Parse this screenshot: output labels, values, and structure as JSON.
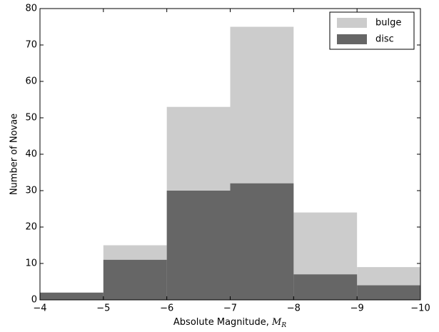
{
  "chart_data": {
    "type": "histogram",
    "xlabel": {
      "text": "Absolute Magnitude, ",
      "symbol": "M",
      "subscript": "R"
    },
    "ylabel": "Number of Novae",
    "bins": [
      -4,
      -5,
      -6,
      -7,
      -8,
      -9,
      -10
    ],
    "series": [
      {
        "name": "bulge",
        "color": "#cccccc",
        "values": [
          0,
          15,
          53,
          75,
          24,
          9
        ]
      },
      {
        "name": "disc",
        "color": "#666666",
        "values": [
          2,
          11,
          30,
          32,
          7,
          4
        ]
      }
    ],
    "xlim": [
      -4,
      -10
    ],
    "xticks": [
      {
        "value": -4,
        "label": "−4"
      },
      {
        "value": -5,
        "label": "−5"
      },
      {
        "value": -6,
        "label": "−6"
      },
      {
        "value": -7,
        "label": "−7"
      },
      {
        "value": -8,
        "label": "−8"
      },
      {
        "value": -9,
        "label": "−9"
      },
      {
        "value": -10,
        "label": "−10"
      }
    ],
    "ylim": [
      0,
      80
    ],
    "yticks": [
      0,
      10,
      20,
      30,
      40,
      50,
      60,
      70,
      80
    ],
    "legend": "upper right"
  }
}
